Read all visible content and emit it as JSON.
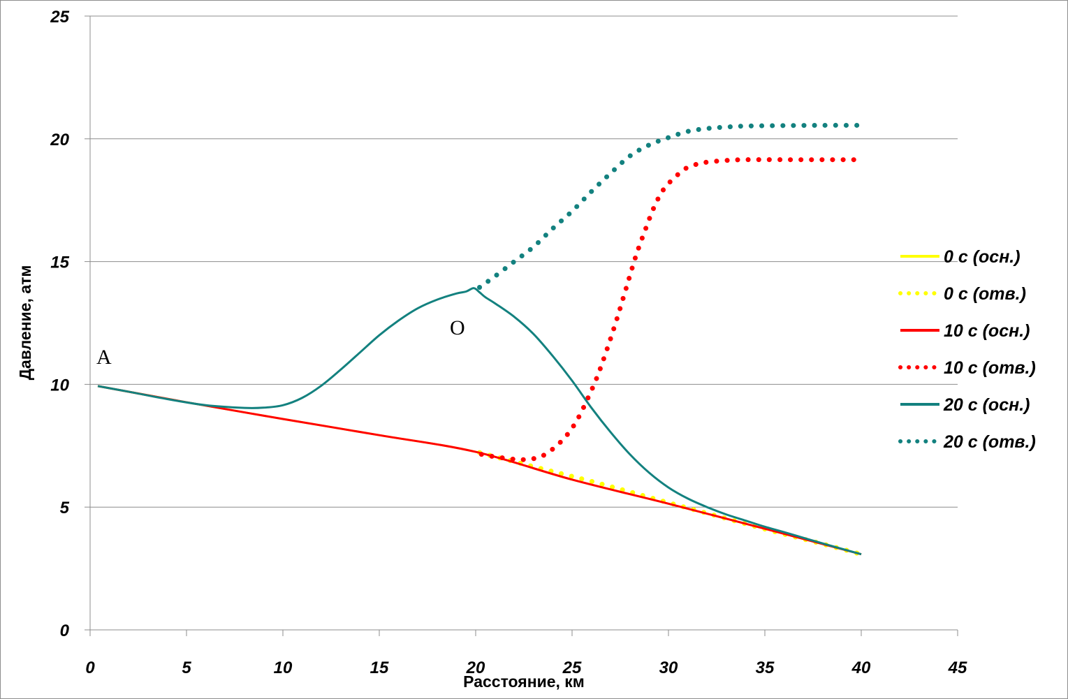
{
  "chart_data": {
    "type": "line",
    "title": "",
    "xlabel": "Расстояние, км",
    "ylabel": "Давление, атм",
    "xlim": [
      0,
      45
    ],
    "ylim": [
      0,
      25
    ],
    "xticks": [
      "0",
      "5",
      "10",
      "15",
      "20",
      "25",
      "30",
      "35",
      "40",
      "45"
    ],
    "yticks": [
      "0",
      "5",
      "10",
      "15",
      "20",
      "25"
    ],
    "grid": "horizontal",
    "legend_position": "right",
    "annotations": [
      {
        "text": "A",
        "x": 0.8,
        "y": 10.9
      },
      {
        "text": "O",
        "x": 19.6,
        "y": 12.3
      }
    ],
    "series": [
      {
        "name": "0 с (осн.)",
        "color": "#ffff00",
        "style": "solid",
        "x": [
          0.4,
          5,
          10,
          15,
          20,
          25,
          30,
          35,
          40
        ],
        "y": [
          9.93,
          9.27,
          8.59,
          7.93,
          7.25,
          6.12,
          5.14,
          4.12,
          3.08
        ]
      },
      {
        "name": "0 с (отв.)",
        "color": "#ffff00",
        "style": "dotted",
        "x": [
          20.2,
          22,
          24,
          26,
          28,
          30,
          32,
          34,
          36,
          38,
          40
        ],
        "y": [
          7.22,
          6.85,
          6.45,
          6.05,
          5.62,
          5.18,
          4.75,
          4.32,
          3.9,
          3.5,
          3.08
        ]
      },
      {
        "name": "10 с (осн.)",
        "color": "#ff0000",
        "style": "solid",
        "x": [
          0.4,
          5,
          10,
          15,
          20,
          25,
          30,
          35,
          40
        ],
        "y": [
          9.93,
          9.27,
          8.59,
          7.93,
          7.25,
          6.12,
          5.14,
          4.12,
          3.08
        ]
      },
      {
        "name": "10 с (отв.)",
        "color": "#ff0000",
        "style": "dotted",
        "x": [
          20.3,
          21,
          22,
          22.8,
          23.5,
          24.2,
          24.8,
          25.3,
          25.8,
          26.3,
          26.8,
          27.3,
          27.8,
          28.3,
          28.8,
          29.3,
          29.8,
          30.3,
          30.8,
          31.4,
          32,
          33,
          34,
          36,
          38,
          40
        ],
        "y": [
          7.15,
          7.05,
          6.95,
          6.95,
          7.1,
          7.5,
          8.0,
          8.6,
          9.4,
          10.3,
          11.4,
          12.6,
          13.9,
          15.2,
          16.3,
          17.3,
          18.0,
          18.4,
          18.75,
          18.95,
          19.05,
          19.12,
          19.15,
          19.15,
          19.15,
          19.15
        ]
      },
      {
        "name": "20 с (осн.)",
        "color": "#13817f",
        "style": "solid",
        "x": [
          0.4,
          2,
          4,
          6,
          8,
          9,
          10,
          11,
          12,
          13,
          14,
          15,
          16,
          17,
          18,
          19,
          19.5,
          19.9,
          20.2,
          20.5,
          21,
          22,
          23,
          24,
          25,
          26,
          27,
          28,
          29,
          30,
          31,
          32,
          33,
          34,
          35,
          36,
          38,
          40
        ],
        "y": [
          9.93,
          9.7,
          9.4,
          9.15,
          9.04,
          9.05,
          9.15,
          9.45,
          9.95,
          10.6,
          11.3,
          12.0,
          12.6,
          13.1,
          13.45,
          13.7,
          13.78,
          13.92,
          13.75,
          13.55,
          13.3,
          12.75,
          12.05,
          11.15,
          10.15,
          9.05,
          8.05,
          7.15,
          6.4,
          5.8,
          5.35,
          5.0,
          4.7,
          4.45,
          4.2,
          3.98,
          3.52,
          3.08
        ]
      },
      {
        "name": "20 с (отв.)",
        "color": "#13817f",
        "style": "dotted",
        "x": [
          20.2,
          21,
          22,
          23,
          24,
          25,
          26,
          27,
          28,
          29,
          30,
          31,
          32,
          33,
          34,
          36,
          38,
          40
        ],
        "y": [
          13.95,
          14.4,
          15.0,
          15.6,
          16.35,
          17.05,
          17.85,
          18.6,
          19.3,
          19.75,
          20.05,
          20.3,
          20.42,
          20.48,
          20.52,
          20.54,
          20.55,
          20.55
        ]
      }
    ]
  }
}
